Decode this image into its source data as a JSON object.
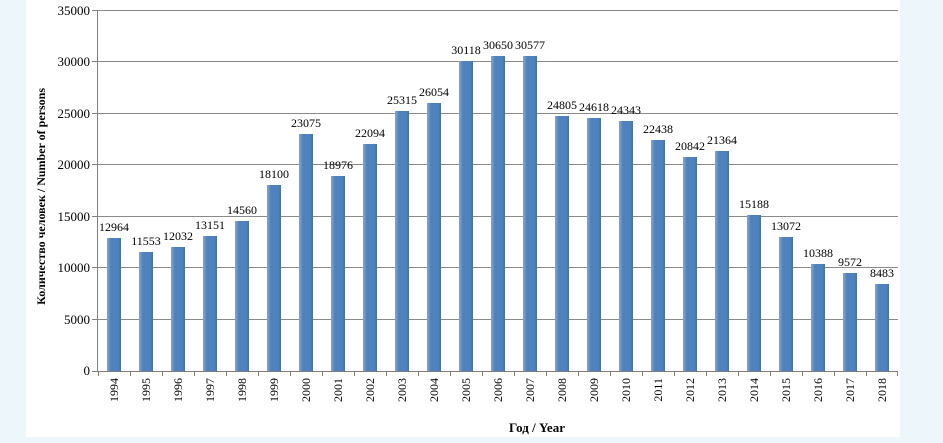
{
  "page": {
    "background_color": "#ffffff",
    "margin_color": "#edf7fb"
  },
  "chart_data": {
    "type": "bar",
    "title": "",
    "categories": [
      "1994",
      "1995",
      "1996",
      "1997",
      "1998",
      "1999",
      "2000",
      "2001",
      "2002",
      "2003",
      "2004",
      "2005",
      "2006",
      "2007",
      "2008",
      "2009",
      "2010",
      "2011",
      "2012",
      "2013",
      "2014",
      "2015",
      "2016",
      "2017",
      "2018"
    ],
    "values": [
      12964,
      11553,
      12032,
      13151,
      14560,
      18100,
      23075,
      18976,
      22094,
      25315,
      26054,
      30118,
      30650,
      30577,
      24805,
      24618,
      24343,
      22438,
      20842,
      21364,
      15188,
      13072,
      10388,
      9572,
      8483
    ],
    "value_labels_shown": true,
    "xlabel": "Год / Year",
    "ylabel": "Количество человек / Number of persons",
    "ylim": [
      0,
      35000
    ],
    "yticks": [
      0,
      5000,
      10000,
      15000,
      20000,
      25000,
      30000,
      35000
    ],
    "grid": "horizontal",
    "legend": "none",
    "bar_color": "#4F81BD",
    "gridline_color": "#8A8A8A",
    "axis_color": "#7F7F7F",
    "text_color": "#000000"
  }
}
